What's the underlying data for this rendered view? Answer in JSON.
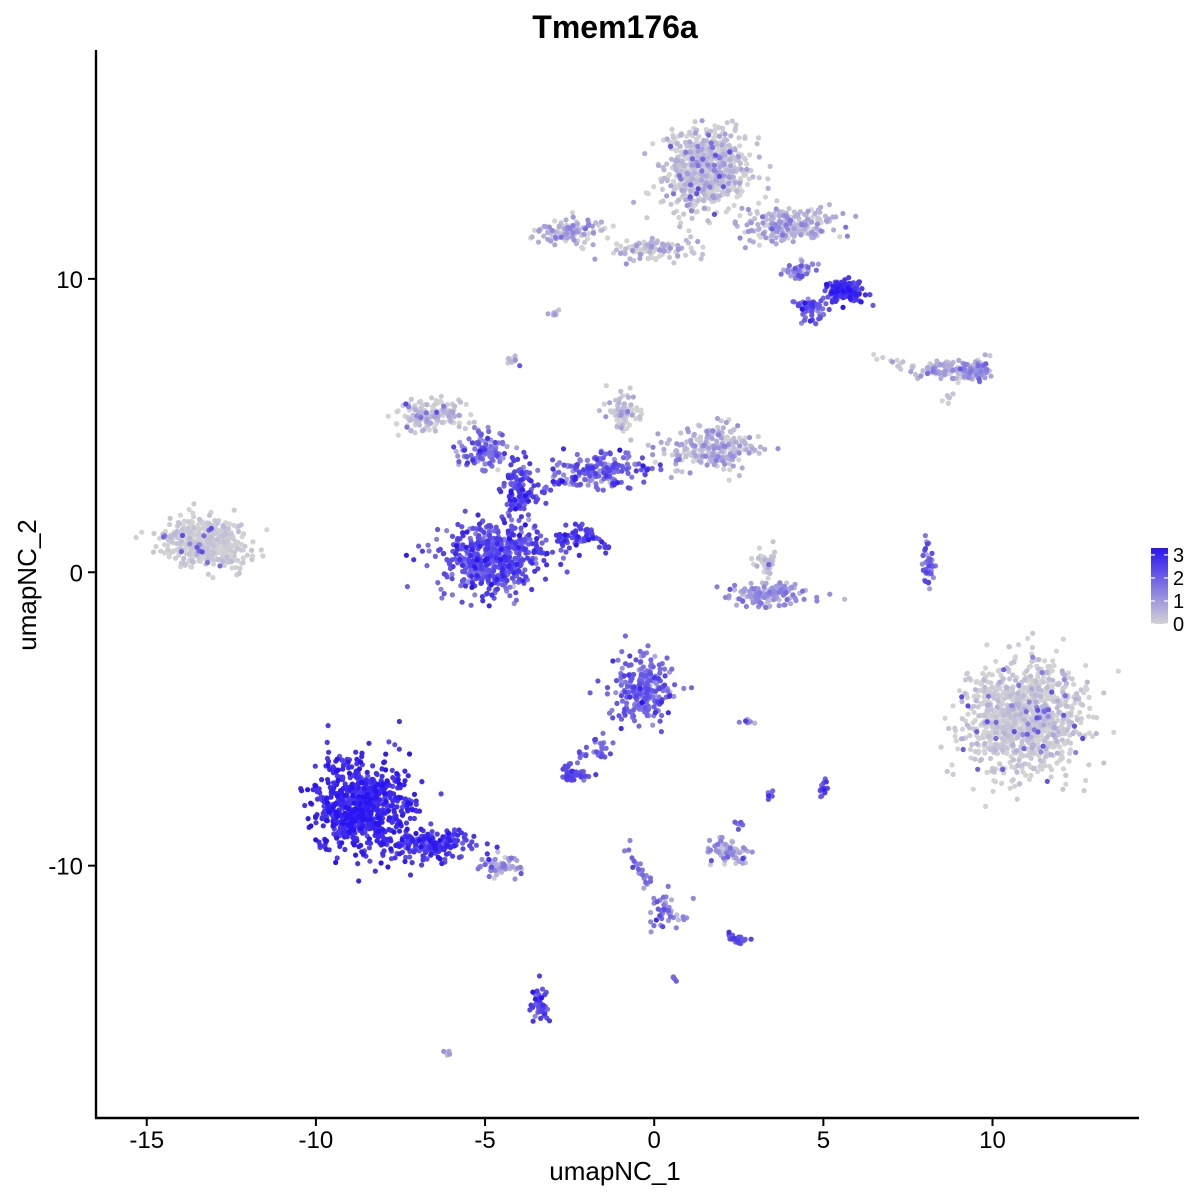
{
  "chart_data": {
    "type": "scatter",
    "title": "Tmem176a",
    "xlabel": "umapNC_1",
    "ylabel": "umapNC_2",
    "xlim": [
      -16.5,
      14.3
    ],
    "ylim": [
      -18.6,
      17.8
    ],
    "x_ticks": [
      -15,
      -10,
      -5,
      0,
      5,
      10
    ],
    "y_ticks": [
      -10,
      0,
      10
    ],
    "x_tick_labels": [
      "-15",
      "-10",
      "-5",
      "0",
      "5",
      "10"
    ],
    "y_tick_labels": [
      "-10",
      "0",
      "10"
    ],
    "color_scale": {
      "name": "",
      "low_color": "#d3d3d3",
      "high_color": "#2a14f2",
      "min": 0,
      "max": 3.3,
      "breaks": [
        0,
        1,
        2,
        3
      ],
      "break_labels": [
        "0",
        "1",
        "2",
        "3"
      ],
      "legend_position": "right"
    },
    "clusters": [
      {
        "cx": -13.2,
        "cy": 1.0,
        "sx": 1.1,
        "sy": 0.8,
        "n": 450,
        "expr": 0.05,
        "spread": 0.15
      },
      {
        "cx": -6.6,
        "cy": 5.3,
        "sx": 0.8,
        "sy": 0.5,
        "n": 160,
        "expr": 0.1,
        "spread": 0.3
      },
      {
        "cx": -5.0,
        "cy": 4.2,
        "sx": 0.7,
        "sy": 0.6,
        "n": 110,
        "expr": 1.5,
        "spread": 0.5
      },
      {
        "cx": -4.8,
        "cy": 0.5,
        "sx": 1.5,
        "sy": 1.1,
        "n": 520,
        "expr": 2.2,
        "spread": 0.4
      },
      {
        "cx": -4.0,
        "cy": 2.8,
        "sx": 0.4,
        "sy": 1.0,
        "n": 100,
        "expr": 2.3,
        "spread": 0.4
      },
      {
        "cx": -1.6,
        "cy": 3.5,
        "sx": 1.5,
        "sy": 0.5,
        "n": 160,
        "expr": 1.8,
        "spread": 0.5
      },
      {
        "cx": -0.9,
        "cy": 5.5,
        "sx": 0.5,
        "sy": 0.6,
        "n": 70,
        "expr": 0.2,
        "spread": 0.3
      },
      {
        "cx": 1.7,
        "cy": 4.3,
        "sx": 1.4,
        "sy": 0.7,
        "n": 220,
        "expr": 0.4,
        "spread": 0.4
      },
      {
        "cx": -2.4,
        "cy": 1.1,
        "sx": 0.5,
        "sy": 0.4,
        "n": 35,
        "expr": 2.5,
        "spread": 0.3
      },
      {
        "cx": 1.6,
        "cy": 13.7,
        "sx": 1.2,
        "sy": 1.2,
        "n": 700,
        "expr": 0.1,
        "spread": 0.3
      },
      {
        "cx": 4.1,
        "cy": 11.8,
        "sx": 1.3,
        "sy": 0.5,
        "n": 220,
        "expr": 0.5,
        "spread": 0.4
      },
      {
        "cx": 5.6,
        "cy": 9.6,
        "sx": 0.5,
        "sy": 0.35,
        "n": 140,
        "expr": 2.6,
        "spread": 0.3
      },
      {
        "cx": 4.6,
        "cy": 9.0,
        "sx": 0.5,
        "sy": 0.4,
        "n": 60,
        "expr": 1.9,
        "spread": 0.4
      },
      {
        "cx": 4.3,
        "cy": 10.3,
        "sx": 0.4,
        "sy": 0.3,
        "n": 40,
        "expr": 1.4,
        "spread": 0.5
      },
      {
        "cx": -2.5,
        "cy": 11.6,
        "sx": 0.9,
        "sy": 0.4,
        "n": 110,
        "expr": 0.4,
        "spread": 0.5
      },
      {
        "cx": 0.0,
        "cy": 11.0,
        "sx": 1.2,
        "sy": 0.35,
        "n": 90,
        "expr": 0.3,
        "spread": 0.4
      },
      {
        "cx": 8.8,
        "cy": 6.9,
        "sx": 1.0,
        "sy": 0.3,
        "n": 110,
        "expr": 0.4,
        "spread": 0.4
      },
      {
        "cx": 9.5,
        "cy": 6.9,
        "sx": 0.4,
        "sy": 0.3,
        "n": 50,
        "expr": 1.0,
        "spread": 0.5
      },
      {
        "cx": -4.2,
        "cy": 7.2,
        "sx": 0.2,
        "sy": 0.2,
        "n": 14,
        "expr": 0.2,
        "spread": 0.3
      },
      {
        "cx": -2.9,
        "cy": 8.8,
        "sx": 0.2,
        "sy": 0.12,
        "n": 10,
        "expr": 0.3,
        "spread": 0.3
      },
      {
        "cx": 3.3,
        "cy": 0.4,
        "sx": 0.3,
        "sy": 0.6,
        "n": 40,
        "expr": 0.1,
        "spread": 0.3
      },
      {
        "cx": 3.3,
        "cy": -0.8,
        "sx": 1.2,
        "sy": 0.35,
        "n": 130,
        "expr": 0.9,
        "spread": 0.4
      },
      {
        "cx": 8.1,
        "cy": 0.3,
        "sx": 0.2,
        "sy": 0.8,
        "n": 40,
        "expr": 1.5,
        "spread": 0.5
      },
      {
        "cx": 10.9,
        "cy": -5.0,
        "sx": 1.6,
        "sy": 1.7,
        "n": 1000,
        "expr": 0.05,
        "spread": 0.2
      },
      {
        "cx": -8.7,
        "cy": -8.0,
        "sx": 1.3,
        "sy": 1.4,
        "n": 720,
        "expr": 2.9,
        "spread": 0.25
      },
      {
        "cx": -6.5,
        "cy": -9.3,
        "sx": 1.0,
        "sy": 0.5,
        "n": 180,
        "expr": 2.6,
        "spread": 0.35
      },
      {
        "cx": -4.6,
        "cy": -10.0,
        "sx": 0.6,
        "sy": 0.3,
        "n": 60,
        "expr": 0.8,
        "spread": 0.5
      },
      {
        "cx": -0.3,
        "cy": -4.0,
        "sx": 0.9,
        "sy": 1.0,
        "n": 240,
        "expr": 1.8,
        "spread": 0.4
      },
      {
        "cx": -2.4,
        "cy": -6.9,
        "sx": 0.35,
        "sy": 0.2,
        "n": 45,
        "expr": 2.2,
        "spread": 0.3
      },
      {
        "cx": -1.6,
        "cy": -6.0,
        "sx": 0.5,
        "sy": 0.5,
        "n": 20,
        "expr": 1.8,
        "spread": 0.3
      },
      {
        "cx": 2.2,
        "cy": -9.5,
        "sx": 0.5,
        "sy": 0.35,
        "n": 70,
        "expr": 0.8,
        "spread": 0.5
      },
      {
        "cx": 2.4,
        "cy": -12.5,
        "sx": 0.3,
        "sy": 0.15,
        "n": 25,
        "expr": 2.2,
        "spread": 0.3
      },
      {
        "cx": 0.3,
        "cy": -11.5,
        "sx": 0.5,
        "sy": 1.0,
        "n": 30,
        "expr": 1.5,
        "spread": 0.5
      },
      {
        "cx": -3.4,
        "cy": -14.8,
        "sx": 0.2,
        "sy": 0.6,
        "n": 40,
        "expr": 2.4,
        "spread": 0.3
      },
      {
        "cx": 5.0,
        "cy": -7.3,
        "sx": 0.12,
        "sy": 0.3,
        "n": 15,
        "expr": 2.3,
        "spread": 0.3
      },
      {
        "cx": 3.4,
        "cy": -7.6,
        "sx": 0.1,
        "sy": 0.15,
        "n": 6,
        "expr": 2.0,
        "spread": 0.3
      },
      {
        "cx": 2.8,
        "cy": -5.1,
        "sx": 0.3,
        "sy": 0.1,
        "n": 8,
        "expr": 0.9,
        "spread": 0.4
      },
      {
        "cx": 2.5,
        "cy": -8.6,
        "sx": 0.1,
        "sy": 0.15,
        "n": 6,
        "expr": 2.0,
        "spread": 0.3
      },
      {
        "cx": 0.6,
        "cy": -13.8,
        "sx": 0.1,
        "sy": 0.1,
        "n": 4,
        "expr": 1.8,
        "spread": 0.3
      },
      {
        "cx": -6.1,
        "cy": -16.4,
        "sx": 0.1,
        "sy": 0.08,
        "n": 5,
        "expr": 0.8,
        "spread": 0.3
      }
    ],
    "paths": [
      {
        "from": [
          -2.3,
          1.7
        ],
        "to": [
          -1.3,
          0.7
        ],
        "n": 28,
        "expr": 2.5,
        "spread": 0.3
      },
      {
        "from": [
          -4.3,
          2.2
        ],
        "to": [
          -1.5,
          3.7
        ],
        "n": 45,
        "expr": 2.0,
        "spread": 0.5
      },
      {
        "from": [
          -0.9,
          -9.2
        ],
        "to": [
          0.3,
          -11.6
        ],
        "n": 25,
        "expr": 1.7,
        "spread": 0.4
      },
      {
        "from": [
          0.3,
          -11.6
        ],
        "to": [
          1.0,
          -11.9
        ],
        "n": 10,
        "expr": 1.2,
        "spread": 0.4
      },
      {
        "from": [
          -1.8,
          -5.8
        ],
        "to": [
          -2.6,
          -6.7
        ],
        "n": 12,
        "expr": 1.8,
        "spread": 0.3
      },
      {
        "from": [
          7.7,
          7.0
        ],
        "to": [
          6.6,
          7.3
        ],
        "n": 12,
        "expr": 0.3,
        "spread": 0.3
      },
      {
        "from": [
          9.0,
          6.2
        ],
        "to": [
          8.6,
          5.7
        ],
        "n": 6,
        "expr": 0.1,
        "spread": 0.2
      }
    ]
  }
}
